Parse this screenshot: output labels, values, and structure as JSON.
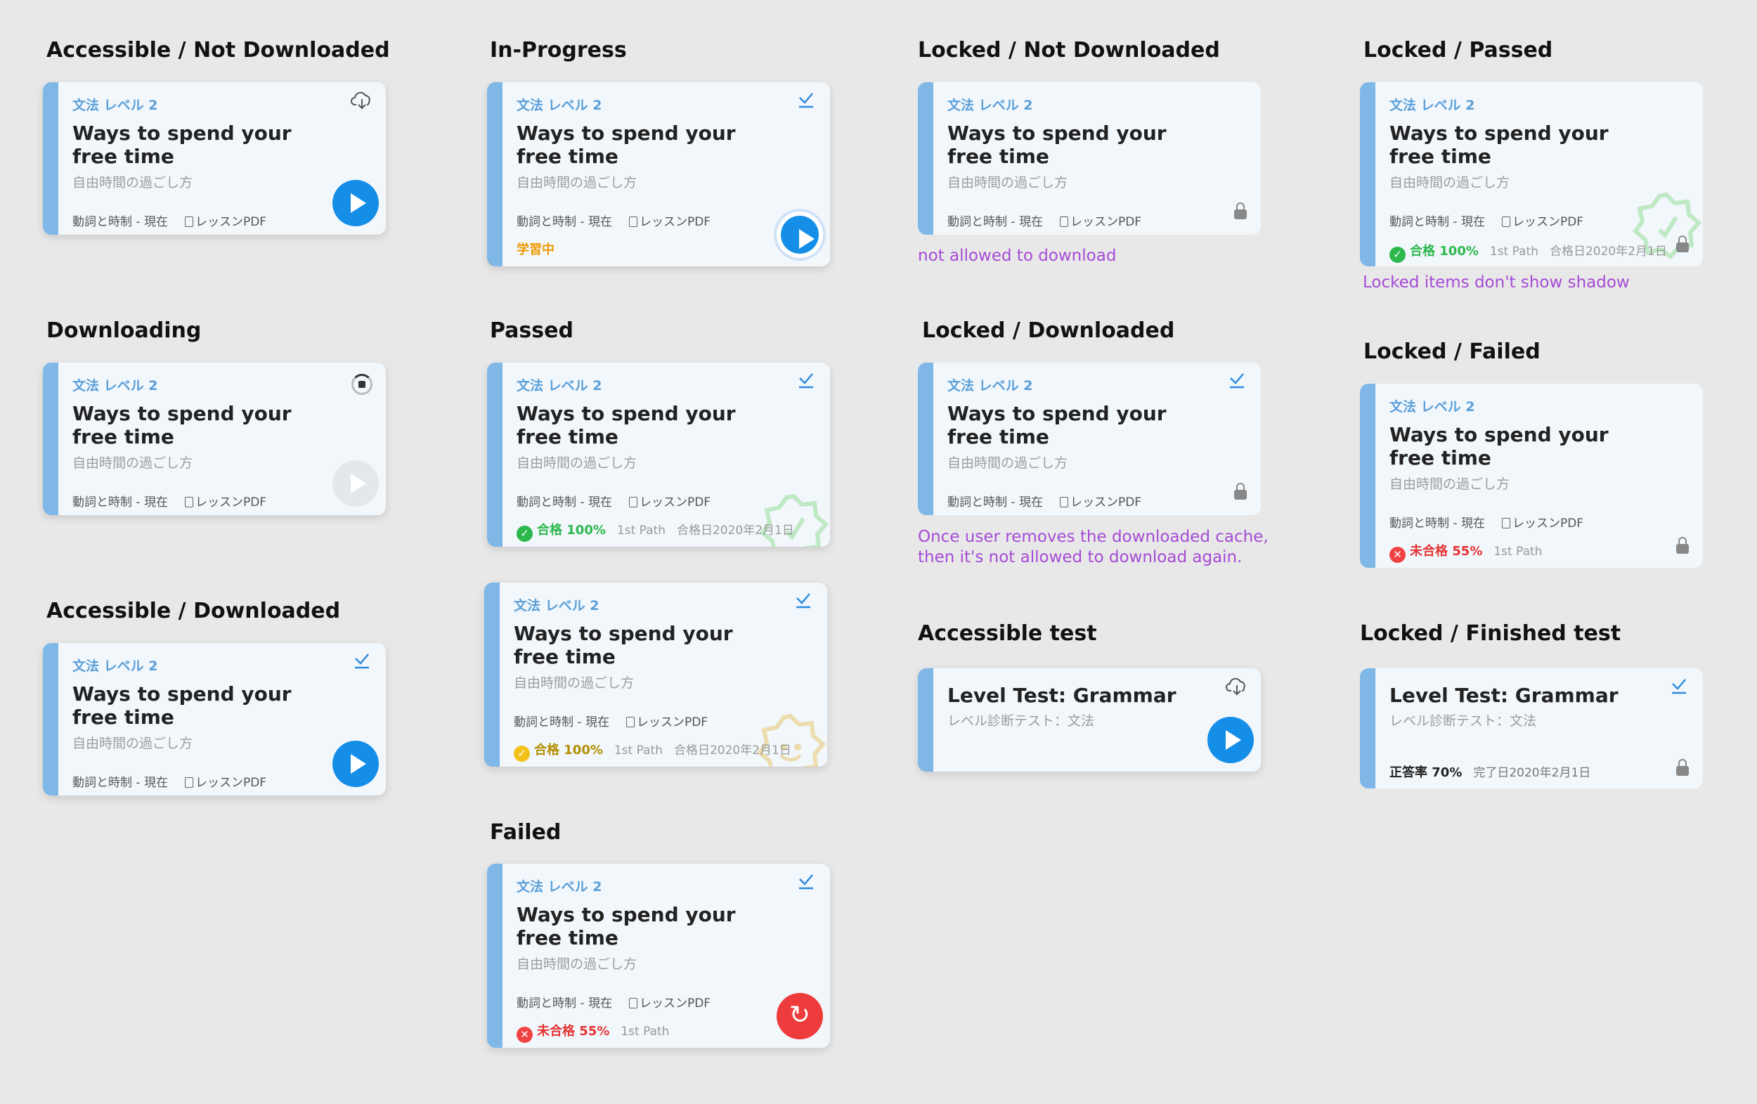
{
  "headings": {
    "c1_1": "Accessible / Not Downloaded",
    "c1_2": "Downloading",
    "c1_3": "Accessible / Downloaded",
    "c2_1": "In-Progress",
    "c2_2": "Passed",
    "c2_3": "Failed",
    "c3_1": "Locked / Not Downloaded",
    "c3_2": "Locked / Downloaded",
    "c3_3": "Accessible test",
    "c4_1": "Locked / Passed",
    "c4_2": "Locked / Failed",
    "c4_3": "Locked / Finished test"
  },
  "notes": {
    "not_allowed": "not allowed to download",
    "once_removed_1": "Once user removes the downloaded cache,",
    "once_removed_2": "then it's not allowed to download again.",
    "no_shadow": "Locked items don't show shadow"
  },
  "lesson": {
    "category": "文法  レベル 2",
    "title": "Ways to spend your free time",
    "subtitle": "自由時間の過ごし方",
    "meta_topic": "動詞と時制 - 現在",
    "meta_doc": "レッスンPDF"
  },
  "test": {
    "title": "Level Test: Grammar",
    "subtitle": "レベル診断テスト：文法"
  },
  "status": {
    "in_progress": "学習中",
    "passed_label": "合格 100%",
    "failed_label": "未合格 55%",
    "path": "1st Path",
    "pass_date": "合格日2020年2月1日",
    "accuracy_label": "正答率 70%",
    "finished_date": "完了日2020年2月1日"
  },
  "icons": {
    "cloud": "cloud-download-icon",
    "check": "check-underline-icon",
    "lock": "lock-icon",
    "play": "play-icon",
    "retry": "retry-icon",
    "doc": "document-icon",
    "badge": "pass-badge-icon"
  },
  "colors": {
    "accent": "#158ee8",
    "stripe": "#7fb7e6",
    "card_bg": "#f2f7fc",
    "pass": "#2db84c",
    "fail": "#f04444",
    "note": "#a54bd6",
    "in_progress": "#ee9a00"
  }
}
